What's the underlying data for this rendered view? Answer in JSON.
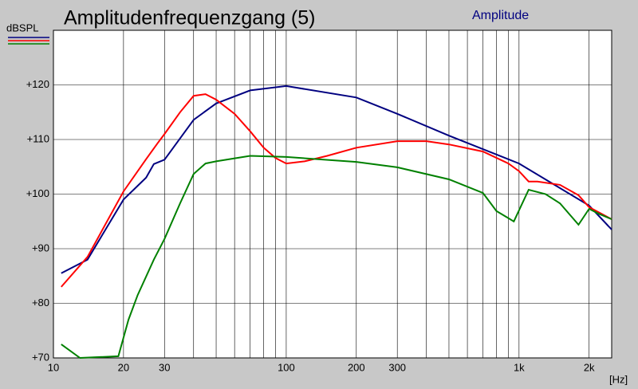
{
  "chart_data": {
    "type": "line",
    "title": "Amplitudenfrequenzgang (5)",
    "subtitle": "Amplitude",
    "y_label": "dBSPL",
    "x_label": "[Hz]",
    "xlog": true,
    "grid": true,
    "xlim": [
      10,
      2500
    ],
    "ylim": [
      70,
      130
    ],
    "xticks": [
      10,
      20,
      30,
      100,
      200,
      300,
      {
        "value": 1000,
        "label": "1k"
      },
      {
        "value": 2000,
        "label": "2k"
      }
    ],
    "xminor": [
      40,
      50,
      60,
      70,
      80,
      90,
      400,
      500,
      600,
      700,
      800,
      900
    ],
    "yticks": [
      {
        "value": 70,
        "label": "+70"
      },
      {
        "value": 80,
        "label": "+80"
      },
      {
        "value": 90,
        "label": "+90"
      },
      {
        "value": 100,
        "label": "+100"
      },
      {
        "value": 110,
        "label": "+110"
      },
      {
        "value": 120,
        "label": "+120"
      }
    ],
    "series": [
      {
        "color": "#000080",
        "x": [
          10.8,
          14,
          20,
          25,
          27,
          30,
          40,
          50,
          70,
          100,
          200,
          300,
          500,
          1000,
          2000,
          2500
        ],
        "values": [
          85.5,
          88,
          99,
          103,
          105.5,
          106.3,
          113.6,
          116.6,
          119,
          119.8,
          117.7,
          114.7,
          110.7,
          105.6,
          97.9,
          93.5
        ]
      },
      {
        "color": "#ff0000",
        "x": [
          10.8,
          14,
          20,
          25,
          28,
          30,
          35,
          40,
          45,
          50,
          60,
          70,
          80,
          90,
          100,
          120,
          150,
          200,
          300,
          400,
          500,
          700,
          900,
          1000,
          1100,
          1200,
          1500,
          1800,
          2000,
          2500
        ],
        "values": [
          83,
          88.5,
          100.5,
          106.4,
          109.3,
          111,
          115,
          118,
          118.3,
          117.3,
          114.7,
          111.5,
          108.5,
          106.6,
          105.6,
          106,
          107,
          108.5,
          109.7,
          109.7,
          109.1,
          107.8,
          105.6,
          104.2,
          102.3,
          102.3,
          101.7,
          99.8,
          97.6,
          95.4
        ]
      },
      {
        "color": "#008000",
        "x": [
          10.8,
          13,
          19,
          21,
          23,
          27,
          30,
          35,
          40,
          45,
          50,
          70,
          100,
          200,
          300,
          500,
          700,
          800,
          950,
          1100,
          1300,
          1500,
          1800,
          2000,
          2200,
          2500
        ],
        "values": [
          72.5,
          70,
          70.3,
          77,
          81.5,
          88,
          91.8,
          98.3,
          103.7,
          105.6,
          106,
          107,
          106.8,
          105.9,
          104.9,
          102.7,
          100.2,
          96.9,
          95,
          100.8,
          100,
          98.3,
          94.4,
          97.3,
          96.4,
          95.4
        ]
      }
    ]
  }
}
